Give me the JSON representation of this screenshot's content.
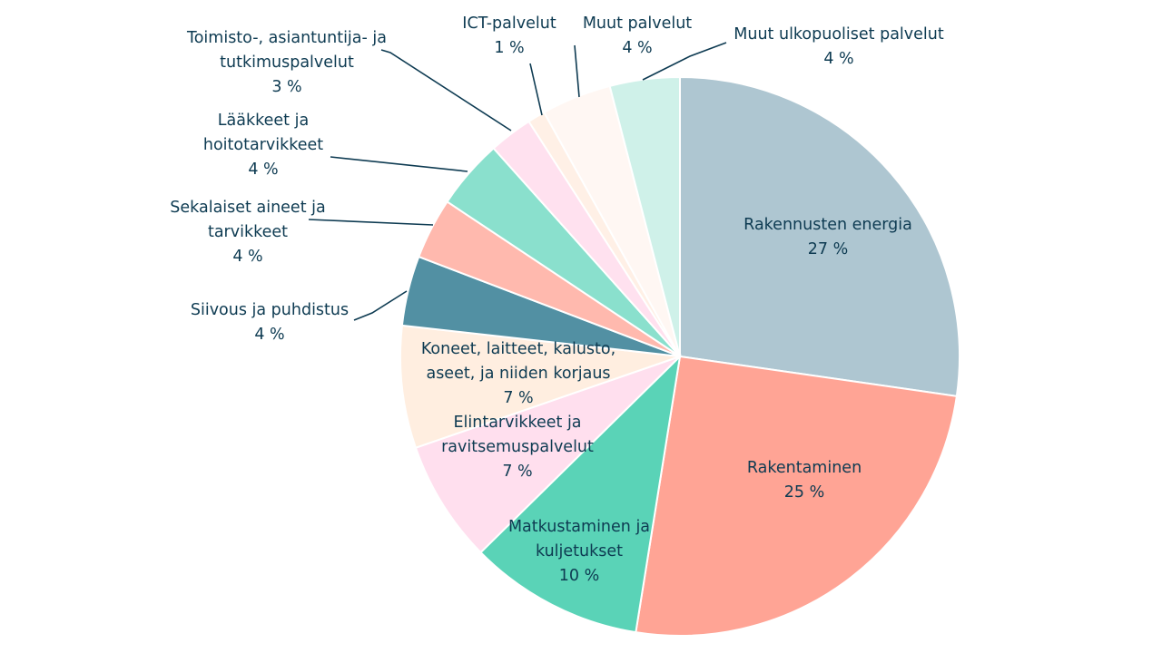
{
  "chart_data": {
    "type": "pie",
    "title": "",
    "slices": [
      {
        "name": "Rakennusten energia",
        "display_name": [
          "Rakennusten energia"
        ],
        "value": 27,
        "value_label": "27 %",
        "color": "#aec6d1"
      },
      {
        "name": "Rakentaminen",
        "display_name": [
          "Rakentaminen"
        ],
        "value": 25,
        "value_label": "25 %",
        "color": "#ffa495"
      },
      {
        "name": "Matkustaminen ja kuljetukset",
        "display_name": [
          "Matkustaminen ja",
          "kuljetukset"
        ],
        "value": 10,
        "value_label": "10 %",
        "color": "#5ad3b7"
      },
      {
        "name": "Elintarvikkeet ja ravitsemuspalvelut",
        "display_name": [
          "Elintarvikkeet ja",
          "ravitsemuspalvelut"
        ],
        "value": 7,
        "value_label": "7 %",
        "color": "#ffdfee"
      },
      {
        "name": "Koneet, laitteet, kalusto, aseet, ja niiden korjaus",
        "display_name": [
          "Koneet, laitteet, kalusto,",
          "aseet, ja niiden korjaus"
        ],
        "value": 7,
        "value_label": "7 %",
        "color": "#ffeee0"
      },
      {
        "name": "Siivous ja puhdistus",
        "display_name": [
          "Siivous ja puhdistus"
        ],
        "value": 4,
        "value_label": "4 %",
        "color": "#5290a3"
      },
      {
        "name": "Sekalaiset aineet ja tarvikkeet",
        "display_name": [
          "Sekalaiset aineet ja",
          "tarvikkeet"
        ],
        "value": 3.5,
        "value_label": "4 %",
        "color": "#ffb9ae"
      },
      {
        "name": "Lääkkeet ja hoitotarvikkeet",
        "display_name": [
          "Lääkkeet ja",
          "hoitotarvikkeet"
        ],
        "value": 4,
        "value_label": "4 %",
        "color": "#8ae0cd"
      },
      {
        "name": "Toimisto-, asiantuntija- ja tutkimuspalvelut",
        "display_name": [
          "Toimisto-, asiantuntija- ja",
          "tutkimuspalvelut"
        ],
        "value": 2.5,
        "value_label": "3 %",
        "color": "#ffe1ef"
      },
      {
        "name": "ICT-palvelut",
        "display_name": [
          "ICT-palvelut"
        ],
        "value": 1,
        "value_label": "1 %",
        "color": "#fff0e6"
      },
      {
        "name": "Muut palvelut",
        "display_name": [
          "Muut palvelut"
        ],
        "value": 4,
        "value_label": "4 %",
        "color": "#fff7f3"
      },
      {
        "name": "Muut ulkopuoliset palvelut",
        "display_name": [
          "Muut ulkopuoliset palvelut"
        ],
        "value": 4,
        "value_label": "4 %",
        "color": "#cff1e9"
      }
    ],
    "start": "12 o'clock",
    "direction": "clockwise",
    "legend": "none",
    "label_color": "#0e3b52"
  }
}
